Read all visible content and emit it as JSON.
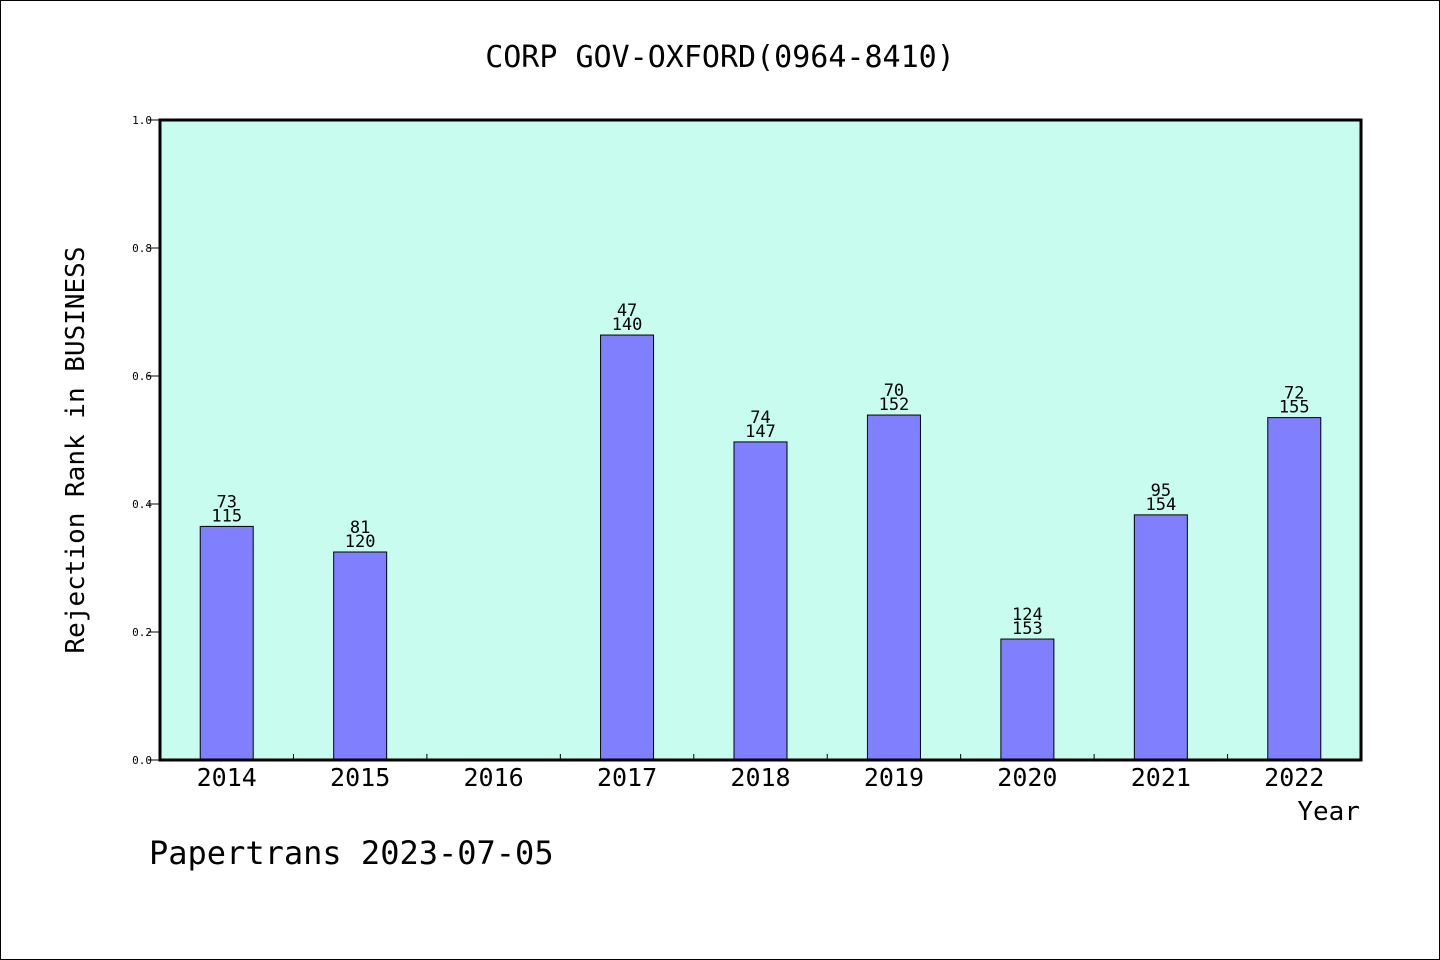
{
  "chart_data": {
    "type": "bar",
    "title": "CORP GOV-OXFORD(0964-8410)",
    "xlabel": "Year",
    "ylabel": "Rejection Rank in BUSINESS",
    "ylim": [
      0,
      1.0
    ],
    "yticks": [
      "0.0",
      "0.2",
      "0.4",
      "0.6",
      "0.8",
      "1.0"
    ],
    "categories": [
      "2014",
      "2015",
      "2016",
      "2017",
      "2018",
      "2019",
      "2020",
      "2021",
      "2022"
    ],
    "values": [
      0.365,
      0.325,
      null,
      0.664,
      0.497,
      0.539,
      0.189,
      0.383,
      0.535
    ],
    "labels_top": [
      "73",
      "81",
      "",
      "47",
      "74",
      "70",
      "124",
      "95",
      "72"
    ],
    "labels_bottom": [
      "115",
      "120",
      "",
      "140",
      "147",
      "152",
      "153",
      "154",
      "155"
    ],
    "grid": false,
    "colors": {
      "plot_background": "#c8fcee",
      "bar": "#8080ff",
      "bar_edge": "#000000"
    }
  },
  "footer": "Papertrans 2023-07-05"
}
